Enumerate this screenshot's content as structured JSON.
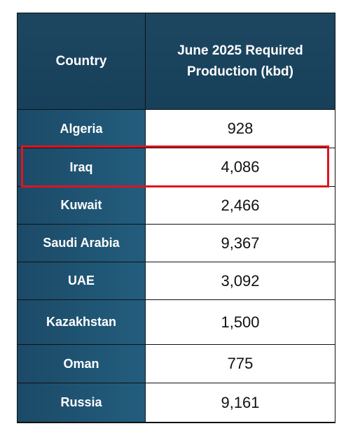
{
  "header": {
    "columns": [
      "Country",
      "June 2025 Required Production (kbd)"
    ]
  },
  "table": {
    "rows": [
      [
        "Algeria",
        "928"
      ],
      [
        "Iraq",
        "4,086"
      ],
      [
        "Kuwait",
        "2,466"
      ],
      [
        "Saudi Arabia",
        "9,367"
      ],
      [
        "UAE",
        "3,092"
      ],
      [
        "Kazakhstan",
        "1,500"
      ],
      [
        "Oman",
        "775"
      ],
      [
        "Russia",
        "9,161"
      ]
    ]
  }
}
